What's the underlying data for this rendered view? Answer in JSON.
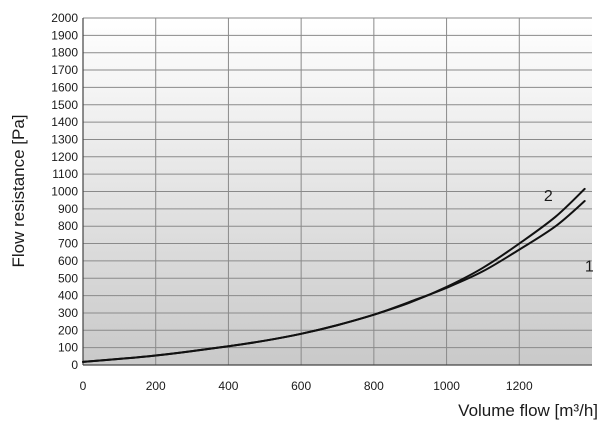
{
  "chart_data": {
    "type": "line",
    "title": "",
    "xlabel": "Volume flow [m³/h]",
    "ylabel": "Flow resistance [Pa]",
    "xlim": [
      0,
      1400
    ],
    "ylim": [
      0,
      2000
    ],
    "xticks": [
      0,
      200,
      400,
      600,
      800,
      1000,
      1200
    ],
    "yticks": [
      0,
      100,
      200,
      300,
      400,
      500,
      600,
      700,
      800,
      900,
      1000,
      1100,
      1200,
      1300,
      1400,
      1500,
      1600,
      1700,
      1800,
      1900,
      2000
    ],
    "grid": true,
    "legend": "none",
    "series": [
      {
        "name": "1",
        "x": [
          0,
          100,
          200,
          300,
          400,
          500,
          600,
          700,
          800,
          900,
          1000,
          1100,
          1200,
          1300,
          1380
        ],
        "y": [
          18,
          35,
          55,
          80,
          108,
          140,
          180,
          230,
          290,
          365,
          445,
          540,
          665,
          800,
          945
        ]
      },
      {
        "name": "2",
        "x": [
          0,
          100,
          200,
          300,
          400,
          500,
          600,
          700,
          800,
          900,
          1000,
          1100,
          1200,
          1300,
          1380
        ],
        "y": [
          18,
          35,
          55,
          80,
          108,
          140,
          180,
          230,
          290,
          360,
          450,
          560,
          700,
          855,
          1015
        ]
      }
    ]
  }
}
